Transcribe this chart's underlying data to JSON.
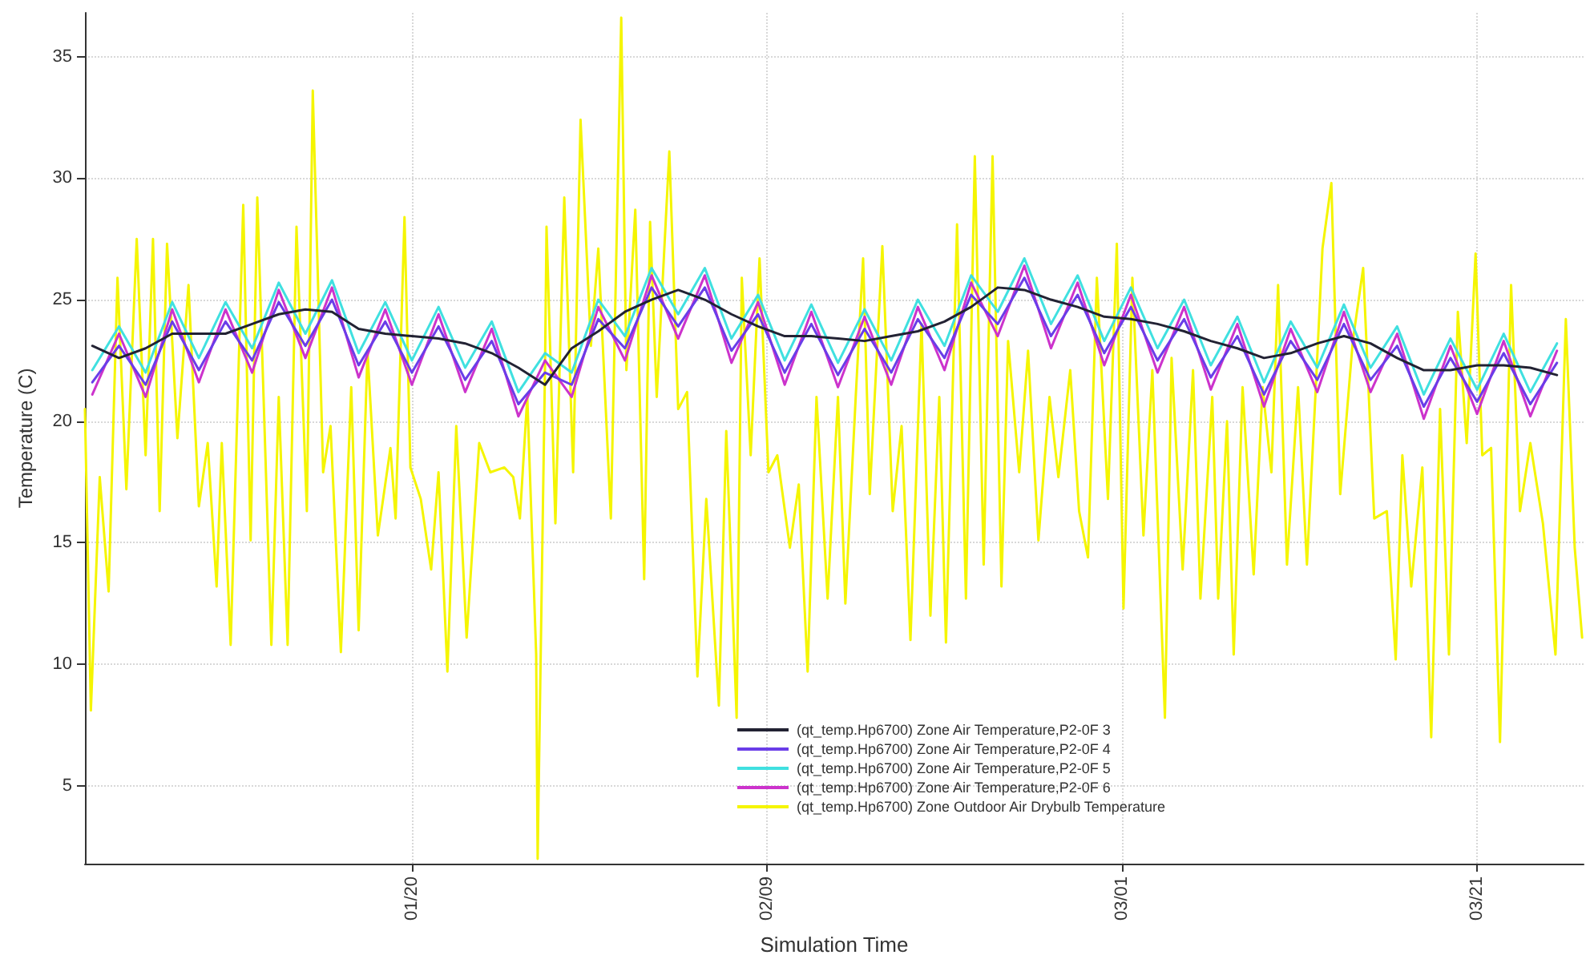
{
  "chart_data": {
    "type": "line",
    "xlabel": "Simulation Time",
    "ylabel": "Temperature (C)",
    "xlim": [
      "--01-01T14:00",
      "--03-27T00:00"
    ],
    "xticks": [
      {
        "value": "--01-20",
        "label": "01/20"
      },
      {
        "value": "--02-09",
        "label": "02/09"
      },
      {
        "value": "--03-01",
        "label": "03/01"
      },
      {
        "value": "--03-21",
        "label": "03/21"
      }
    ],
    "ylim": [
      1.8,
      36.8
    ],
    "yticks": [
      5,
      10,
      15,
      20,
      25,
      30,
      35
    ],
    "grid": true,
    "legend": "bottom",
    "marker": "none",
    "line_style": "solid",
    "x": [
      "--01-02T00:00",
      "--01-03T12:00",
      "--01-05T00:00",
      "--01-06T12:00",
      "--01-08T00:00",
      "--01-09T12:00",
      "--01-11T00:00",
      "--01-12T12:00",
      "--01-14T00:00",
      "--01-15T12:00",
      "--01-17T00:00",
      "--01-18T12:00",
      "--01-20T00:00",
      "--01-21T12:00",
      "--01-23T00:00",
      "--01-24T12:00",
      "--01-26T00:00",
      "--01-27T12:00",
      "--01-29T00:00",
      "--01-30T12:00",
      "--02-01T00:00",
      "--02-02T12:00",
      "--02-04T00:00",
      "--02-05T12:00",
      "--02-07T00:00",
      "--02-08T12:00",
      "--02-10T00:00",
      "--02-11T12:00",
      "--02-13T00:00",
      "--02-14T12:00",
      "--02-16T00:00",
      "--02-17T12:00",
      "--02-19T00:00",
      "--02-20T12:00",
      "--02-22T00:00",
      "--02-23T12:00",
      "--02-25T00:00",
      "--02-26T12:00",
      "--02-28T00:00",
      "--03-01T12:00",
      "--03-03T00:00",
      "--03-04T12:00",
      "--03-06T00:00",
      "--03-07T12:00",
      "--03-09T00:00",
      "--03-10T12:00",
      "--03-12T00:00",
      "--03-13T12:00",
      "--03-15T00:00",
      "--03-16T12:00",
      "--03-18T00:00",
      "--03-19T12:00",
      "--03-21T00:00",
      "--03-22T12:00",
      "--03-24T00:00",
      "--03-25T12:00"
    ],
    "series": [
      {
        "name": "(qt_temp.Hp6700) Zone Air Temperature,P2-0F 3",
        "color": "#222233",
        "values": [
          23.1,
          22.6,
          23.0,
          23.6,
          23.6,
          23.6,
          24.0,
          24.4,
          24.6,
          24.5,
          23.8,
          23.6,
          23.5,
          23.4,
          23.2,
          22.8,
          22.2,
          21.5,
          23.0,
          23.7,
          24.5,
          25.0,
          25.4,
          25.0,
          24.4,
          23.9,
          23.5,
          23.5,
          23.4,
          23.3,
          23.5,
          23.7,
          24.1,
          24.7,
          25.5,
          25.4,
          25.0,
          24.7,
          24.3,
          24.2,
          24.0,
          23.7,
          23.3,
          23.0,
          22.6,
          22.8,
          23.2,
          23.5,
          23.2,
          22.6,
          22.1,
          22.1,
          22.3,
          22.3,
          22.2,
          21.9
        ]
      },
      {
        "name": "(qt_temp.Hp6700) Zone Air Temperature,P2-0F 4",
        "color": "#6a3de8",
        "values": [
          21.6,
          23.1,
          21.5,
          24.1,
          22.1,
          24.1,
          22.5,
          24.9,
          23.1,
          25.0,
          22.3,
          24.1,
          22.0,
          23.9,
          21.7,
          23.3,
          20.7,
          22.0,
          21.5,
          24.2,
          23.0,
          25.5,
          23.9,
          25.5,
          22.9,
          24.4,
          22.0,
          24.0,
          21.9,
          23.8,
          22.0,
          24.2,
          22.6,
          25.2,
          24.0,
          25.9,
          23.5,
          25.2,
          22.8,
          24.7,
          22.5,
          24.2,
          21.8,
          23.5,
          21.1,
          23.3,
          21.7,
          24.0,
          21.7,
          23.1,
          20.6,
          22.6,
          20.8,
          22.8,
          20.7,
          22.4
        ]
      },
      {
        "name": "(qt_temp.Hp6700) Zone Air Temperature,P2-0F 5",
        "color": "#40e0e0",
        "values": [
          22.1,
          23.9,
          22.0,
          24.9,
          22.6,
          24.9,
          23.0,
          25.7,
          23.6,
          25.8,
          22.8,
          24.9,
          22.5,
          24.7,
          22.2,
          24.1,
          21.2,
          22.8,
          22.0,
          25.0,
          23.5,
          26.3,
          24.4,
          26.3,
          23.4,
          25.2,
          22.5,
          24.8,
          22.4,
          24.6,
          22.5,
          25.0,
          23.1,
          26.0,
          24.5,
          26.7,
          24.0,
          26.0,
          23.3,
          25.5,
          23.0,
          25.0,
          22.3,
          24.3,
          21.6,
          24.1,
          22.2,
          24.8,
          22.2,
          23.9,
          21.1,
          23.4,
          21.3,
          23.6,
          21.2,
          23.2
        ]
      },
      {
        "name": "(qt_temp.Hp6700) Zone Air Temperature,P2-0F 6",
        "color": "#cc33cc",
        "values": [
          21.1,
          23.6,
          21.0,
          24.6,
          21.6,
          24.6,
          22.0,
          25.4,
          22.6,
          25.5,
          21.8,
          24.6,
          21.5,
          24.4,
          21.2,
          23.8,
          20.2,
          22.5,
          21.0,
          24.7,
          22.5,
          26.0,
          23.4,
          26.0,
          22.4,
          24.9,
          21.5,
          24.5,
          21.4,
          24.3,
          21.5,
          24.7,
          22.1,
          25.7,
          23.5,
          26.4,
          23.0,
          25.7,
          22.3,
          25.2,
          22.0,
          24.7,
          21.3,
          24.0,
          20.6,
          23.8,
          21.2,
          24.5,
          21.2,
          23.6,
          20.1,
          23.1,
          20.3,
          23.3,
          20.2,
          22.9
        ]
      },
      {
        "name": "(qt_temp.Hp6700) Zone Outdoor Air Drybulb Temperature",
        "color": "#f5f500",
        "x": [
          "--01-01T14:00",
          "--01-01T22:00",
          "--01-02T10:00",
          "--01-02T22:00",
          "--01-03T10:00",
          "--01-03T22:00",
          "--01-04T12:00",
          "--01-05T00:00",
          "--01-05T10:00",
          "--01-05T19:00",
          "--01-06T05:00",
          "--01-06T19:00",
          "--01-07T10:00",
          "--01-08T00:00",
          "--01-08T12:00",
          "--01-09T00:00",
          "--01-09T07:00",
          "--01-09T19:00",
          "--01-10T12:00",
          "--01-10T22:00",
          "--01-11T07:00",
          "--01-12T02:00",
          "--01-12T12:00",
          "--01-13T00:00",
          "--01-13T12:00",
          "--01-14T02:00",
          "--01-14T10:00",
          "--01-15T00:00",
          "--01-15T10:00",
          "--01-16T00:00",
          "--01-16T14:00",
          "--01-17T00:00",
          "--01-17T12:00",
          "--01-18T02:00",
          "--01-18T19:00",
          "--01-19T02:00",
          "--01-19T14:00",
          "--01-19T22:00",
          "--01-20T12:00",
          "--01-21T02:00",
          "--01-21T12:00",
          "--01-22T00:00",
          "--01-22T12:00",
          "--01-23T02:00",
          "--01-23T19:00",
          "--01-24T10:00",
          "--01-25T05:00",
          "--01-25T17:00",
          "--01-26T02:00",
          "--01-26T12:00",
          "--01-27T00:00",
          "--01-27T02:00",
          "--01-27T12:00",
          "--01-27T14:00",
          "--01-28T02:00",
          "--01-28T14:00",
          "--01-29T02:00",
          "--01-29T12:00",
          "--01-30T02:00",
          "--01-30T12:00",
          "--01-31T05:00",
          "--01-31T19:00",
          "--02-01T02:00",
          "--02-01T14:00",
          "--02-02T02:00",
          "--02-02T10:00",
          "--02-02T19:00",
          "--02-03T12:00",
          "--02-04T00:00",
          "--02-04T12:00",
          "--02-05T02:00",
          "--02-05T14:00",
          "--02-06T07:00",
          "--02-06T17:00",
          "--02-07T07:00",
          "--02-07T14:00",
          "--02-08T02:00",
          "--02-08T14:00",
          "--02-09T02:00",
          "--02-09T14:00",
          "--02-10T07:00",
          "--02-10T19:00",
          "--02-11T07:00",
          "--02-11T19:00",
          "--02-12T10:00",
          "--02-13T00:00",
          "--02-13T10:00",
          "--02-14T00:00",
          "--02-14T10:00",
          "--02-14T19:00",
          "--02-15T12:00",
          "--02-16T02:00",
          "--02-16T14:00",
          "--02-17T02:00",
          "--02-17T17:00",
          "--02-18T05:00",
          "--02-18T17:00",
          "--02-19T02:00",
          "--02-19T17:00",
          "--02-20T05:00",
          "--02-20T17:00",
          "--02-21T05:00",
          "--02-21T17:00",
          "--02-22T05:00",
          "--02-22T14:00",
          "--02-23T05:00",
          "--02-23T17:00",
          "--02-24T07:00",
          "--02-24T22:00",
          "--02-25T10:00",
          "--02-26T02:00",
          "--02-26T14:00",
          "--02-27T02:00",
          "--02-27T14:00",
          "--02-28T05:00",
          "--02-28T17:00",
          "--03-01T02:00",
          "--03-01T14:00",
          "--03-02T05:00",
          "--03-02T17:00",
          "--03-03T10:00",
          "--03-03T19:00",
          "--03-04T10:00",
          "--03-05T00:00",
          "--03-05T10:00",
          "--03-06T02:00",
          "--03-06T10:00",
          "--03-06T22:00",
          "--03-07T07:00",
          "--03-07T19:00",
          "--03-08T10:00",
          "--03-08T22:00",
          "--03-09T10:00",
          "--03-09T19:00",
          "--03-10T07:00",
          "--03-10T22:00",
          "--03-11T10:00",
          "--03-11T22:00",
          "--03-12T07:00",
          "--03-12T19:00",
          "--03-13T07:00",
          "--03-14T00:00",
          "--03-14T14:00",
          "--03-15T05:00",
          "--03-15T22:00",
          "--03-16T10:00",
          "--03-16T19:00",
          "--03-17T07:00",
          "--03-17T22:00",
          "--03-18T10:00",
          "--03-18T22:00",
          "--03-19T10:00",
          "--03-19T22:00",
          "--03-20T10:00",
          "--03-20T22:00",
          "--03-21T07:00",
          "--03-21T19:00",
          "--03-22T07:00",
          "--03-22T22:00",
          "--03-23T10:00",
          "--03-24T00:00",
          "--03-24T17:00",
          "--03-25T10:00",
          "--03-26T00:00",
          "--03-26T12:00",
          "--03-26T22:00"
        ],
        "values": [
          20.5,
          8.1,
          17.7,
          13.0,
          25.9,
          17.2,
          27.5,
          18.6,
          27.5,
          16.3,
          27.3,
          19.3,
          25.6,
          16.5,
          19.1,
          13.2,
          19.1,
          10.8,
          28.9,
          15.1,
          29.2,
          10.8,
          21.0,
          10.8,
          28.0,
          16.3,
          33.6,
          17.9,
          19.8,
          10.5,
          21.4,
          11.4,
          22.9,
          15.3,
          18.9,
          16.0,
          28.4,
          18.1,
          16.8,
          13.9,
          17.9,
          9.7,
          19.8,
          11.1,
          19.1,
          17.9,
          18.1,
          17.7,
          16.0,
          21.0,
          10.4,
          2.0,
          22.3,
          28.0,
          15.8,
          29.2,
          17.9,
          32.4,
          23.1,
          27.1,
          16.0,
          36.6,
          22.1,
          28.7,
          13.5,
          28.2,
          21.0,
          31.1,
          20.5,
          21.2,
          9.5,
          16.8,
          8.3,
          19.6,
          7.8,
          25.9,
          18.6,
          26.7,
          17.9,
          18.6,
          14.8,
          17.4,
          9.7,
          21.0,
          12.7,
          21.0,
          12.5,
          21.0,
          26.7,
          17.0,
          27.2,
          16.3,
          19.8,
          11.0,
          24.0,
          12.0,
          21.0,
          10.9,
          28.1,
          12.7,
          30.9,
          14.1,
          30.9,
          13.2,
          23.3,
          17.9,
          22.9,
          15.1,
          21.0,
          17.7,
          22.1,
          16.3,
          14.4,
          25.9,
          16.8,
          27.3,
          12.3,
          25.9,
          15.3,
          22.1,
          7.8,
          22.6,
          13.9,
          22.1,
          12.7,
          21.0,
          12.7,
          20.0,
          10.4,
          21.4,
          13.7,
          21.4,
          17.9,
          25.6,
          14.1,
          21.4,
          14.1,
          21.4,
          27.1,
          29.8,
          17.0,
          23.3,
          26.3,
          16.0,
          16.3,
          10.2,
          18.6,
          13.2,
          18.1,
          7.0,
          20.5,
          10.4,
          24.5,
          19.1,
          26.9,
          18.6,
          18.9,
          6.8,
          25.6,
          16.3,
          19.1,
          15.8,
          10.4,
          24.2,
          14.8,
          11.1
        ]
      }
    ]
  }
}
